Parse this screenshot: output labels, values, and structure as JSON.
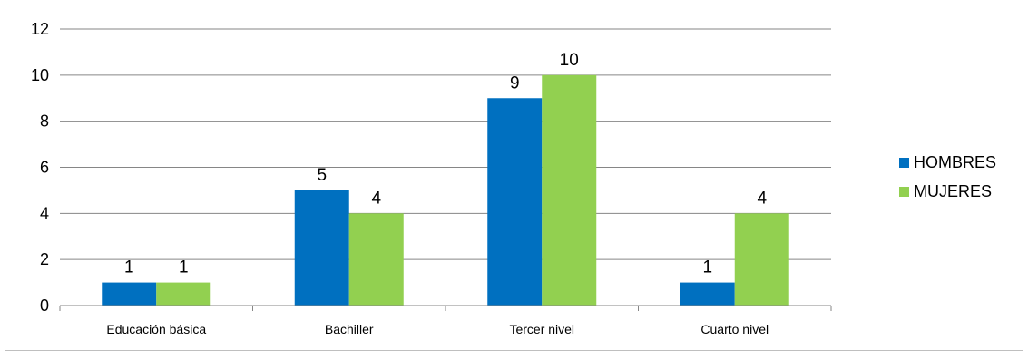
{
  "chart_data": {
    "type": "bar",
    "categories": [
      "Educación básica",
      "Bachiller",
      "Tercer nivel",
      "Cuarto nivel"
    ],
    "series": [
      {
        "name": "HOMBRES",
        "color": "#0070C0",
        "values": [
          1,
          5,
          9,
          1
        ]
      },
      {
        "name": "MUJERES",
        "color": "#92D050",
        "values": [
          1,
          4,
          10,
          4
        ]
      }
    ],
    "ylim": [
      0,
      12
    ],
    "yticks": [
      0,
      2,
      4,
      6,
      8,
      10,
      12
    ],
    "grid": true,
    "data_labels": true,
    "legend_position": "right"
  }
}
